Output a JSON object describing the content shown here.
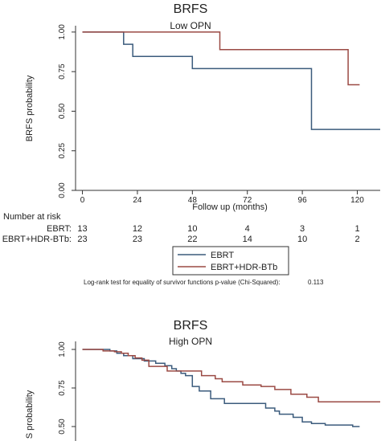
{
  "chart_data": [
    {
      "type": "line",
      "title": "BRFS",
      "subtitle": "Low OPN",
      "xlabel": "Follow up (months)",
      "ylabel": "BRFS probability",
      "xticks": [
        "0",
        "24",
        "48",
        "72",
        "96",
        "120"
      ],
      "yticks": [
        "0.00",
        "0.25",
        "0.50",
        "0.75",
        "1.00"
      ],
      "xlim": [
        -3,
        130
      ],
      "ylim": [
        0,
        1.04
      ],
      "grid": false,
      "series": [
        {
          "name": "EBRT",
          "color": "#3b5b7c",
          "x": [
            0,
            18,
            18,
            22,
            22,
            48,
            48,
            100,
            100,
            130
          ],
          "y": [
            1,
            1,
            0.923,
            0.923,
            0.846,
            0.846,
            0.769,
            0.769,
            0.385,
            0.385
          ]
        },
        {
          "name": "EBRT+HDR-BTb",
          "color": "#9b4a44",
          "x": [
            0,
            60,
            60,
            116,
            116,
            121
          ],
          "y": [
            1,
            1,
            0.889,
            0.889,
            0.667,
            0.667
          ]
        }
      ],
      "risk_table": {
        "header": "Number at risk",
        "rows": [
          {
            "label": "EBRT:",
            "values": [
              "13",
              "12",
              "10",
              "4",
              "3",
              "1"
            ]
          },
          {
            "label": "EBRT+HDR-BTb:",
            "values": [
              "23",
              "23",
              "22",
              "14",
              "10",
              "2"
            ]
          }
        ]
      },
      "legend": {
        "position": "bottom-center",
        "entries": [
          {
            "label": "EBRT",
            "color": "#3b5b7c"
          },
          {
            "label": "EBRT+HDR-BTb",
            "color": "#9b4a44"
          }
        ]
      },
      "test_note": "Log-rank test for equality of survivor functions p-value (Chi-Squared):",
      "test_value": "0.113"
    },
    {
      "type": "line",
      "title": "BRFS",
      "subtitle": "High OPN",
      "xlabel": "",
      "ylabel": "S probability",
      "yticks": [
        "0.50",
        "0.75",
        "1.00"
      ],
      "xlim": [
        -3,
        130
      ],
      "ylim": [
        0.5,
        1.03
      ],
      "grid": false,
      "series": [
        {
          "name": "EBRT",
          "color": "#3b5b7c",
          "x": [
            0,
            12,
            12,
            15,
            15,
            18,
            18,
            22,
            22,
            27,
            27,
            32,
            32,
            36,
            36,
            39,
            39,
            41,
            41,
            43,
            43,
            45,
            45,
            48,
            48,
            51,
            51,
            56,
            56,
            62,
            62,
            80,
            80,
            84,
            84,
            86,
            86,
            92,
            92,
            96,
            96,
            100,
            100,
            106,
            106,
            118,
            118,
            121
          ],
          "y": [
            1,
            1,
            0.99,
            0.99,
            0.975,
            0.975,
            0.96,
            0.96,
            0.94,
            0.94,
            0.925,
            0.925,
            0.91,
            0.91,
            0.895,
            0.895,
            0.875,
            0.875,
            0.86,
            0.86,
            0.845,
            0.845,
            0.83,
            0.83,
            0.76,
            0.76,
            0.73,
            0.73,
            0.68,
            0.68,
            0.65,
            0.65,
            0.62,
            0.62,
            0.6,
            0.6,
            0.58,
            0.58,
            0.56,
            0.56,
            0.53,
            0.53,
            0.52,
            0.52,
            0.51,
            0.51,
            0.5,
            0.5
          ]
        },
        {
          "name": "EBRT+HDR-BTb",
          "color": "#9b4a44",
          "x": [
            0,
            9,
            9,
            14,
            14,
            17,
            17,
            20,
            20,
            23,
            23,
            26,
            26,
            29,
            29,
            37,
            37,
            52,
            52,
            58,
            58,
            61,
            61,
            70,
            70,
            78,
            78,
            84,
            84,
            91,
            91,
            98,
            98,
            103,
            103,
            130
          ],
          "y": [
            1,
            1,
            0.99,
            0.99,
            0.985,
            0.985,
            0.975,
            0.975,
            0.96,
            0.96,
            0.945,
            0.945,
            0.93,
            0.93,
            0.89,
            0.89,
            0.86,
            0.86,
            0.83,
            0.83,
            0.81,
            0.81,
            0.79,
            0.79,
            0.77,
            0.77,
            0.76,
            0.76,
            0.74,
            0.74,
            0.71,
            0.71,
            0.69,
            0.69,
            0.66,
            0.66
          ]
        }
      ]
    }
  ]
}
